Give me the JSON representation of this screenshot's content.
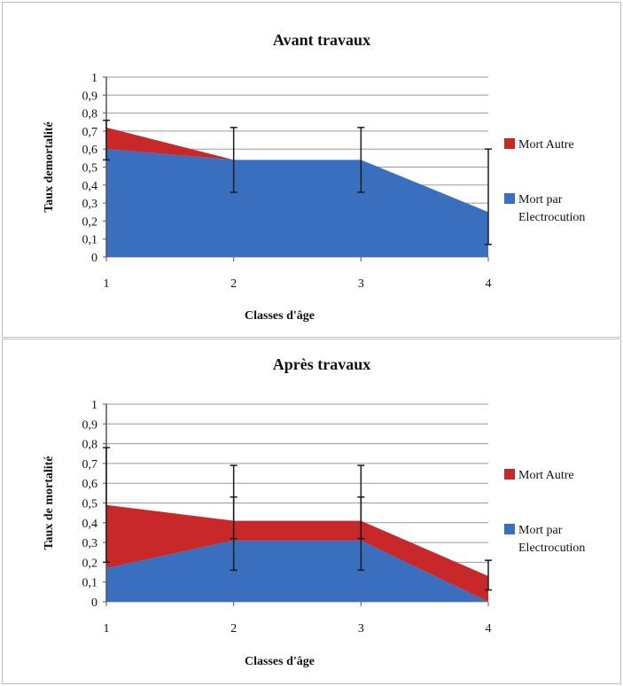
{
  "chart_data": [
    {
      "type": "area",
      "stacked": true,
      "title": "Avant travaux",
      "xlabel": "Classes d'âge",
      "ylabel": "Taux demortalité",
      "categories": [
        "1",
        "2",
        "3",
        "4"
      ],
      "ylim": [
        0,
        1
      ],
      "yticks": [
        "0",
        "0,1",
        "0,2",
        "0,3",
        "0,4",
        "0,5",
        "0,6",
        "0,7",
        "0,8",
        "0,9",
        "1"
      ],
      "grid": true,
      "legend_position": "right",
      "series": [
        {
          "name": "Mort par Electrocution",
          "legend_lines": [
            "Mort par",
            "Electrocution"
          ],
          "values": [
            0.6,
            0.54,
            0.54,
            0.25
          ],
          "color": "#3a6fbf"
        },
        {
          "name": "Mort Autre",
          "legend_lines": [
            "Mort Autre"
          ],
          "values": [
            0.12,
            0,
            0,
            0
          ],
          "color": "#c8282a"
        }
      ],
      "error_bars": [
        {
          "x": 1,
          "low": 0.54,
          "high": 0.76
        },
        {
          "x": 2,
          "low": 0.36,
          "high": 0.72
        },
        {
          "x": 3,
          "low": 0.36,
          "high": 0.72
        },
        {
          "x": 4,
          "low": 0.07,
          "high": 0.6
        }
      ]
    },
    {
      "type": "area",
      "stacked": true,
      "title": "Après travaux",
      "xlabel": "Classes d'âge",
      "ylabel": "Taux de mortalité",
      "categories": [
        "1",
        "2",
        "3",
        "4"
      ],
      "ylim": [
        0,
        1
      ],
      "yticks": [
        "0",
        "0,1",
        "0,2",
        "0,3",
        "0,4",
        "0,5",
        "0,6",
        "0,7",
        "0,8",
        "0,9",
        "1"
      ],
      "grid": true,
      "legend_position": "right",
      "series": [
        {
          "name": "Mort par Electrocution",
          "legend_lines": [
            "Mort par",
            "Electrocution"
          ],
          "values": [
            0.17,
            0.31,
            0.31,
            0.0
          ],
          "color": "#3a6fbf"
        },
        {
          "name": "Mort Autre",
          "legend_lines": [
            "Mort Autre"
          ],
          "values": [
            0.32,
            0.1,
            0.1,
            0.13
          ],
          "color": "#c8282a"
        }
      ],
      "error_bars": [
        {
          "x": 1,
          "low": 0.2,
          "high": 0.78
        },
        {
          "x": 2,
          "low": 0.16,
          "high": 0.69
        },
        {
          "x": 3,
          "low": 0.16,
          "high": 0.69
        },
        {
          "x": 4,
          "low": 0.06,
          "high": 0.21
        },
        {
          "x": 2,
          "low": 0.32,
          "high": 0.53
        },
        {
          "x": 3,
          "low": 0.32,
          "high": 0.53
        }
      ]
    }
  ]
}
